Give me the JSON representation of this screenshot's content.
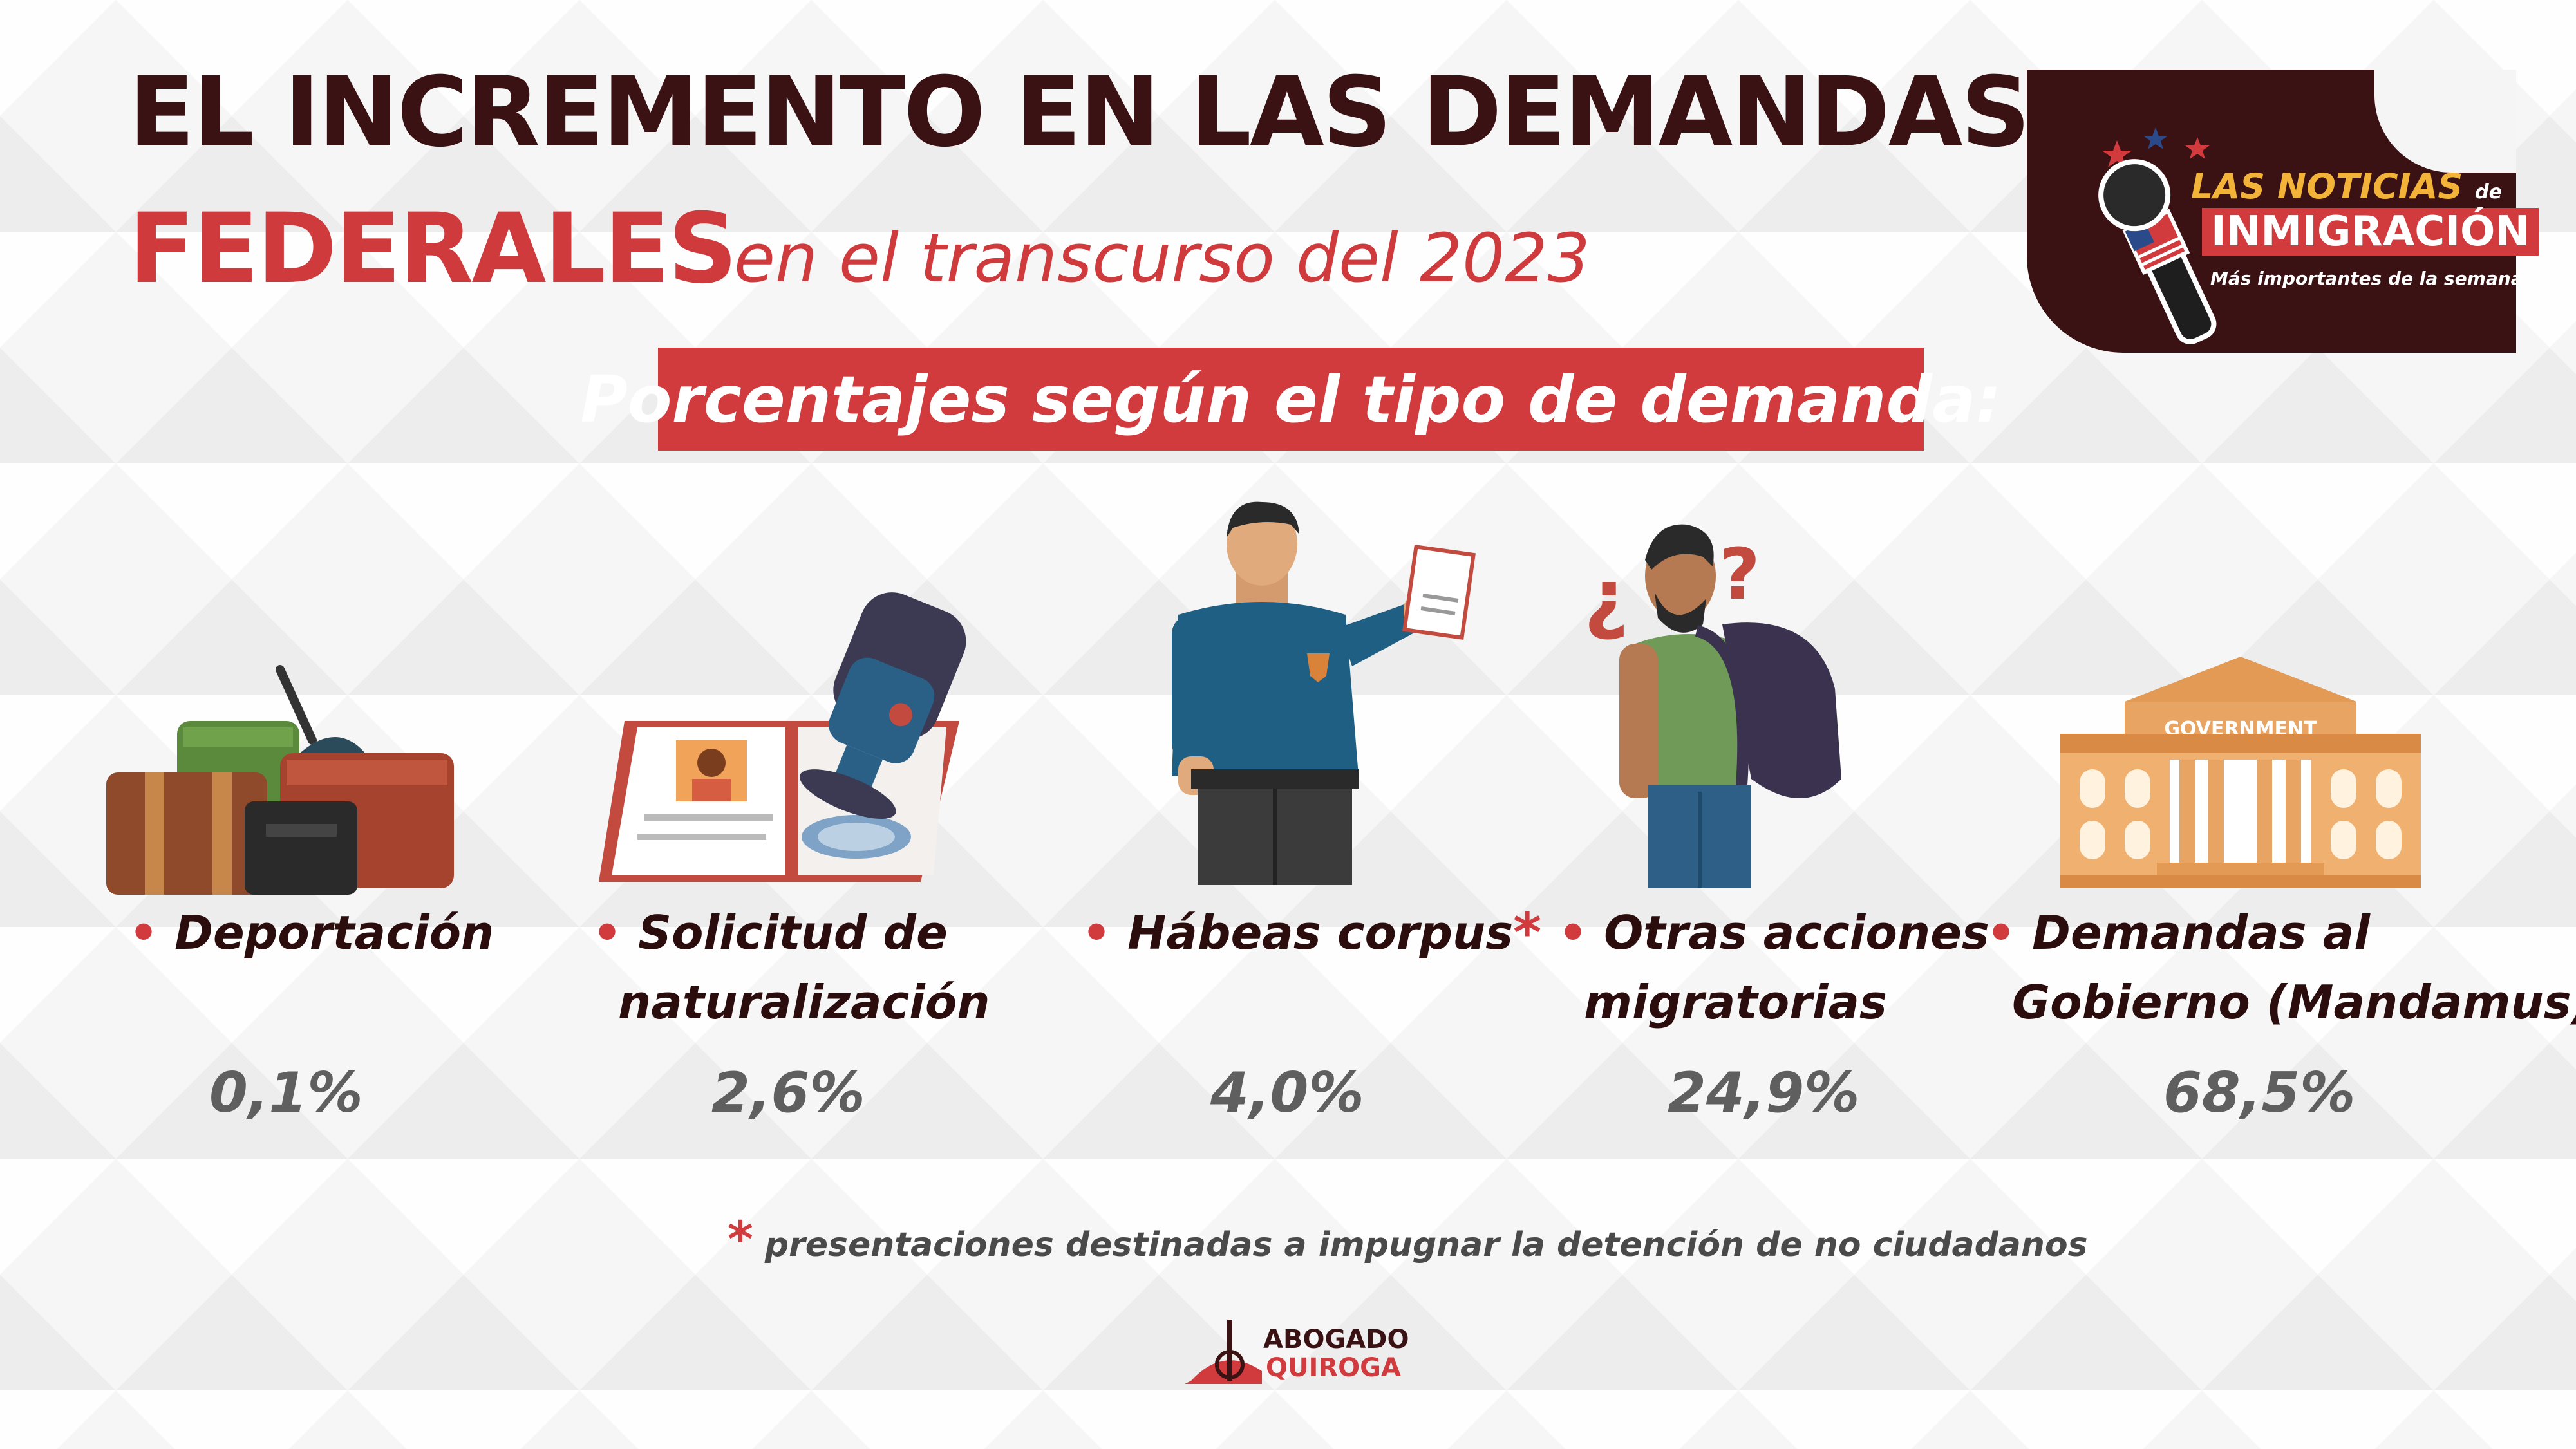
{
  "title": {
    "line1": "EL INCREMENTO EN LAS DEMANDAS",
    "line2": "FEDERALES",
    "line2_suffix": "en el transcurso del 2023"
  },
  "banner": "Porcentajes según el tipo de demanda:",
  "logo": {
    "line1": "LAS NOTICIAS",
    "line1_small": "de",
    "line2": "INMIGRACIÓN",
    "line3": "Más importantes de la semana"
  },
  "items": [
    {
      "label": "Deportación",
      "label2": "",
      "value": "0,1%",
      "icon": "luggage-icon"
    },
    {
      "label": "Solicitud de",
      "label2": "naturalización",
      "value": "2,6%",
      "icon": "passport-stamp-icon"
    },
    {
      "label": "Hábeas corpus",
      "label2": "",
      "value": "4,0%",
      "icon": "police-officer-icon",
      "marker": "*"
    },
    {
      "label": "Otras acciones",
      "label2": "migratorias",
      "value": "24,9%",
      "icon": "confused-traveler-icon"
    },
    {
      "label": "Demandas al",
      "label2": "Gobierno (Mandamus)",
      "value": "68,5%",
      "icon": "government-building-icon"
    }
  ],
  "government_sign": "GOVERNMENT",
  "footnote": {
    "marker": "*",
    "text": "presentaciones destinadas a impugnar la detención de no ciudadanos"
  },
  "brand": {
    "line1": "ABOGADO",
    "line2": "QUIROGA"
  },
  "colors": {
    "accent": "#d13b3e",
    "dark": "#3a1213",
    "value_gray": "#5f5f5f"
  }
}
